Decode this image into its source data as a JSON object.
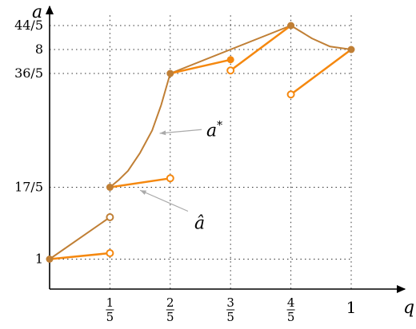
{
  "chart_data": {
    "type": "line",
    "xlabel": "q",
    "ylabel": "a",
    "xlim": [
      0,
      1.02
    ],
    "ylim": [
      0,
      9.3
    ],
    "grid": "dotted",
    "x_ticks": [
      {
        "value": 0.2,
        "num": "1",
        "den": "5"
      },
      {
        "value": 0.4,
        "num": "2",
        "den": "5"
      },
      {
        "value": 0.6,
        "num": "3",
        "den": "5"
      },
      {
        "value": 0.8,
        "num": "4",
        "den": "5"
      },
      {
        "value": 1.0,
        "label": "1"
      }
    ],
    "y_ticks": [
      {
        "value": 1.0,
        "label": "1"
      },
      {
        "value": 3.4,
        "label": "17/5"
      },
      {
        "value": 7.2,
        "label": "36/5"
      },
      {
        "value": 8.0,
        "label": "8"
      },
      {
        "value": 8.8,
        "label": "44/5"
      }
    ],
    "annotations": [
      {
        "text": "a*",
        "base": "a",
        "sup": "*",
        "target_series": "a_star",
        "point": [
          0.365,
          5.2
        ],
        "label_pos": [
          0.52,
          5.3
        ]
      },
      {
        "text": "â",
        "target_series": "a_hat",
        "point": [
          0.3,
          3.3
        ],
        "label_pos": [
          0.48,
          2.2
        ]
      }
    ],
    "series": [
      {
        "id": "a_star",
        "color": "#c07f35",
        "stroke_width": 2,
        "segments": [
          [
            [
              0,
              1.0
            ],
            [
              0.2,
              2.4
            ]
          ],
          [
            [
              0.2,
              3.4
            ],
            [
              0.23,
              3.65
            ],
            [
              0.26,
              3.95
            ],
            [
              0.3,
              4.55
            ],
            [
              0.34,
              5.3
            ],
            [
              0.37,
              6.15
            ],
            [
              0.4,
              7.2
            ]
          ],
          [
            [
              0.4,
              7.2
            ],
            [
              0.8,
              8.8
            ]
          ],
          [
            [
              0.8,
              8.8
            ],
            [
              0.87,
              8.37
            ],
            [
              0.93,
              8.1
            ],
            [
              1.0,
              8.0
            ]
          ]
        ],
        "filled_points": [
          [
            0,
            1.0
          ],
          [
            0.2,
            3.4
          ],
          [
            0.4,
            7.2
          ],
          [
            0.8,
            8.8
          ],
          [
            1.0,
            8.0
          ]
        ],
        "open_points": [
          [
            0.2,
            2.4
          ]
        ]
      },
      {
        "id": "a_hat",
        "color": "#f5880f",
        "stroke_width": 2.5,
        "segments": [
          [
            [
              0,
              1.0
            ],
            [
              0.2,
              1.2
            ]
          ],
          [
            [
              0.2,
              3.4
            ],
            [
              0.4,
              3.7
            ]
          ],
          [
            [
              0.4,
              7.2
            ],
            [
              0.6,
              7.66
            ]
          ],
          [
            [
              0.6,
              7.3
            ],
            [
              0.8,
              8.8
            ]
          ],
          [
            [
              0.8,
              6.5
            ],
            [
              1.0,
              8.0
            ]
          ]
        ],
        "filled_points": [
          [
            0.6,
            7.66
          ]
        ],
        "open_points": [
          [
            0.2,
            1.2
          ],
          [
            0.4,
            3.7
          ],
          [
            0.6,
            7.3
          ],
          [
            0.8,
            6.5
          ]
        ]
      }
    ]
  }
}
